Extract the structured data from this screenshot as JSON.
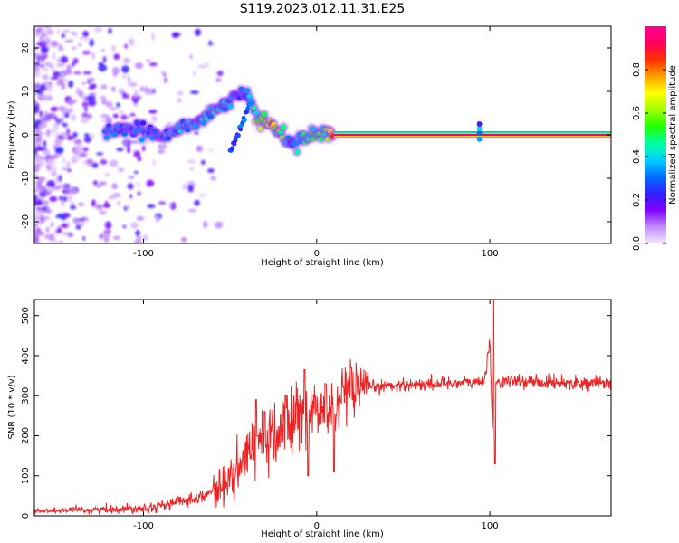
{
  "title": "S119.2023.012.11.31.E25",
  "chart_data": [
    {
      "type": "heatmap",
      "xlabel": "Height of straight line (km)",
      "ylabel": "Frequency (Hz)",
      "xlim": [
        -163,
        170
      ],
      "ylim": [
        -25,
        25
      ],
      "xticks": [
        -100,
        0,
        100
      ],
      "yticks": [
        -20,
        -10,
        0,
        10,
        20
      ],
      "colorbar": {
        "label": "Normalized spectral amplitude",
        "range": [
          0,
          1
        ],
        "ticks": [
          0.0,
          0.2,
          0.4,
          0.6,
          0.8
        ],
        "colors": [
          "#f4e8ff",
          "#c08cff",
          "#7f00ff",
          "#3020ff",
          "#0070ff",
          "#00d0ff",
          "#00ffa0",
          "#20ff00",
          "#a0ff00",
          "#ffff00",
          "#ffa000",
          "#ff3000",
          "#ff0060",
          "#ff0090"
        ]
      },
      "ridge": {
        "x": [
          -122,
          -110,
          -100,
          -90,
          -80,
          -70,
          -60,
          -50,
          -45,
          -40,
          -35,
          -30,
          -25,
          -20,
          -15,
          -10,
          -5,
          0,
          5,
          10,
          30,
          60,
          90,
          94,
          100,
          130,
          170
        ],
        "y": [
          0.5,
          1,
          1,
          0,
          1.5,
          2.5,
          5.5,
          8,
          9.5,
          10,
          4,
          3,
          1.5,
          0.5,
          -2,
          -1,
          -0.5,
          0,
          0.5,
          0,
          0,
          0,
          0,
          1.5,
          0,
          0,
          0
        ],
        "amp": [
          0.35,
          0.3,
          0.3,
          0.3,
          0.35,
          0.35,
          0.4,
          0.35,
          0.25,
          0.3,
          0.55,
          0.65,
          0.75,
          0.55,
          0.3,
          0.45,
          0.45,
          0.45,
          0.55,
          0.9,
          0.95,
          0.95,
          0.95,
          0.7,
          0.95,
          0.95,
          0.95
        ]
      }
    },
    {
      "type": "line",
      "xlabel": "Height of straight line (km)",
      "ylabel": "SNR (10 * v/v)",
      "xlim": [
        -163,
        170
      ],
      "ylim": [
        0,
        540
      ],
      "xticks": [
        -100,
        0,
        100
      ],
      "yticks": [
        0,
        100,
        200,
        300,
        400,
        500
      ],
      "color": "#ee2222",
      "series": [
        {
          "x": [
            -163,
            -140,
            -120,
            -100,
            -90,
            -80,
            -70,
            -60,
            -55,
            -50,
            -45,
            -40,
            -35,
            -32,
            -30,
            -25,
            -20,
            -15,
            -10,
            -5,
            0,
            5,
            10,
            15,
            20,
            30,
            40,
            50,
            60,
            70,
            80,
            90,
            96,
            98,
            100,
            101,
            102,
            103,
            104,
            110,
            120,
            140,
            170
          ],
          "y": [
            12,
            14,
            16,
            20,
            25,
            35,
            45,
            60,
            75,
            90,
            110,
            150,
            200,
            215,
            175,
            195,
            215,
            230,
            255,
            250,
            265,
            260,
            275,
            290,
            305,
            320,
            325,
            327,
            328,
            330,
            332,
            333,
            335,
            360,
            440,
            300,
            160,
            330,
            335,
            336,
            335,
            333,
            330
          ],
          "spikes": [
            [
              -35,
              290
            ],
            [
              -34,
              200
            ],
            [
              -30,
              260
            ],
            [
              -18,
              300
            ],
            [
              -7,
              365
            ],
            [
              -5,
              100
            ],
            [
              10,
              110
            ],
            [
              5,
              330
            ],
            [
              20,
              370
            ],
            [
              102,
              540
            ],
            [
              103,
              130
            ]
          ]
        }
      ]
    }
  ]
}
